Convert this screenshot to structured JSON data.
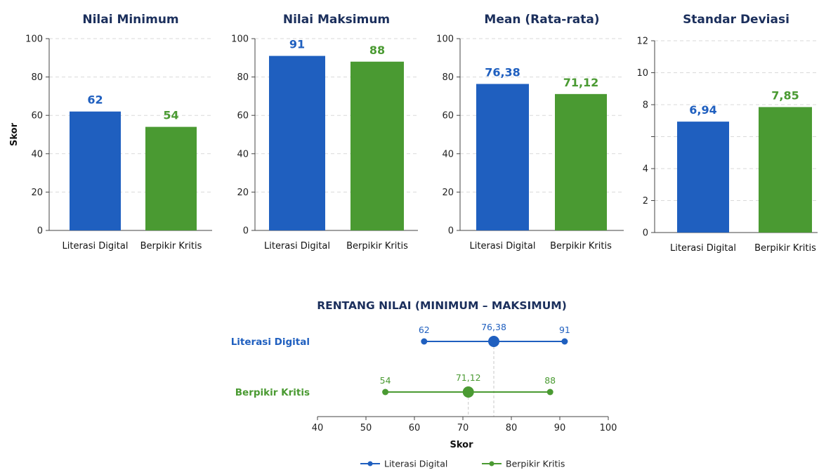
{
  "colors": {
    "literasi": "#1f5fbf",
    "berpikir": "#4a9a32",
    "title": "#1b2f5c",
    "grid": "#d9d9d9",
    "axis": "#444444"
  },
  "chart_data": [
    {
      "type": "bar",
      "title": "Nilai Minimum",
      "ylabel": "Skor",
      "categories": [
        "Literasi Digital",
        "Berpikir Kritis"
      ],
      "values": [
        62,
        54
      ],
      "value_labels": [
        "62",
        "54"
      ],
      "ylim": [
        0,
        100
      ],
      "yticks": [
        0,
        20,
        40,
        60,
        80,
        100
      ],
      "ytick_labels": [
        "0",
        "20",
        "40",
        "60",
        "80",
        "100"
      ],
      "grid": true
    },
    {
      "type": "bar",
      "title": "Nilai Maksimum",
      "categories": [
        "Literasi Digital",
        "Berpikir Kritis"
      ],
      "values": [
        91,
        88
      ],
      "value_labels": [
        "91",
        "88"
      ],
      "ylim": [
        0,
        100
      ],
      "yticks": [
        0,
        20,
        40,
        60,
        80,
        100
      ],
      "ytick_labels": [
        "0",
        "20",
        "40",
        "60",
        "80",
        "100"
      ],
      "grid": true
    },
    {
      "type": "bar",
      "title": "Mean (Rata-rata)",
      "categories": [
        "Literasi Digital",
        "Berpikir Kritis"
      ],
      "values": [
        76.38,
        71.12
      ],
      "value_labels": [
        "76,38",
        "71,12"
      ],
      "ylim": [
        0,
        100
      ],
      "yticks": [
        0,
        20,
        40,
        60,
        80,
        100
      ],
      "ytick_labels": [
        "0",
        "20",
        "40",
        "60",
        "80",
        "100"
      ],
      "grid": true
    },
    {
      "type": "bar",
      "title": "Standar Deviasi",
      "categories": [
        "Literasi Digital",
        "Berpikir Kritis"
      ],
      "values": [
        6.94,
        7.85
      ],
      "value_labels": [
        "6,94",
        "7,85"
      ],
      "ylim": [
        0,
        12
      ],
      "yticks": [
        0,
        2,
        4,
        6,
        8,
        10,
        12
      ],
      "ytick_labels": [
        "0",
        "2",
        "4",
        "",
        "8",
        "10",
        "12"
      ],
      "grid": true
    },
    {
      "type": "range",
      "title": "RENTANG NILAI (MINIMUM – MAKSIMUM)",
      "xlabel": "Skor",
      "xlim": [
        40,
        100
      ],
      "xticks": [
        40,
        50,
        60,
        70,
        80,
        90,
        100
      ],
      "series": [
        {
          "name": "Literasi Digital",
          "min": 62,
          "max": 91,
          "mean": 76.38,
          "min_label": "62",
          "max_label": "91",
          "mean_label": "76,38"
        },
        {
          "name": "Berpikir Kritis",
          "min": 54,
          "max": 88,
          "mean": 71.12,
          "min_label": "54",
          "max_label": "88",
          "mean_label": "71,12"
        }
      ],
      "legend": [
        "Literasi Digital",
        "Berpikir Kritis"
      ],
      "legend_position": "bottom"
    }
  ]
}
